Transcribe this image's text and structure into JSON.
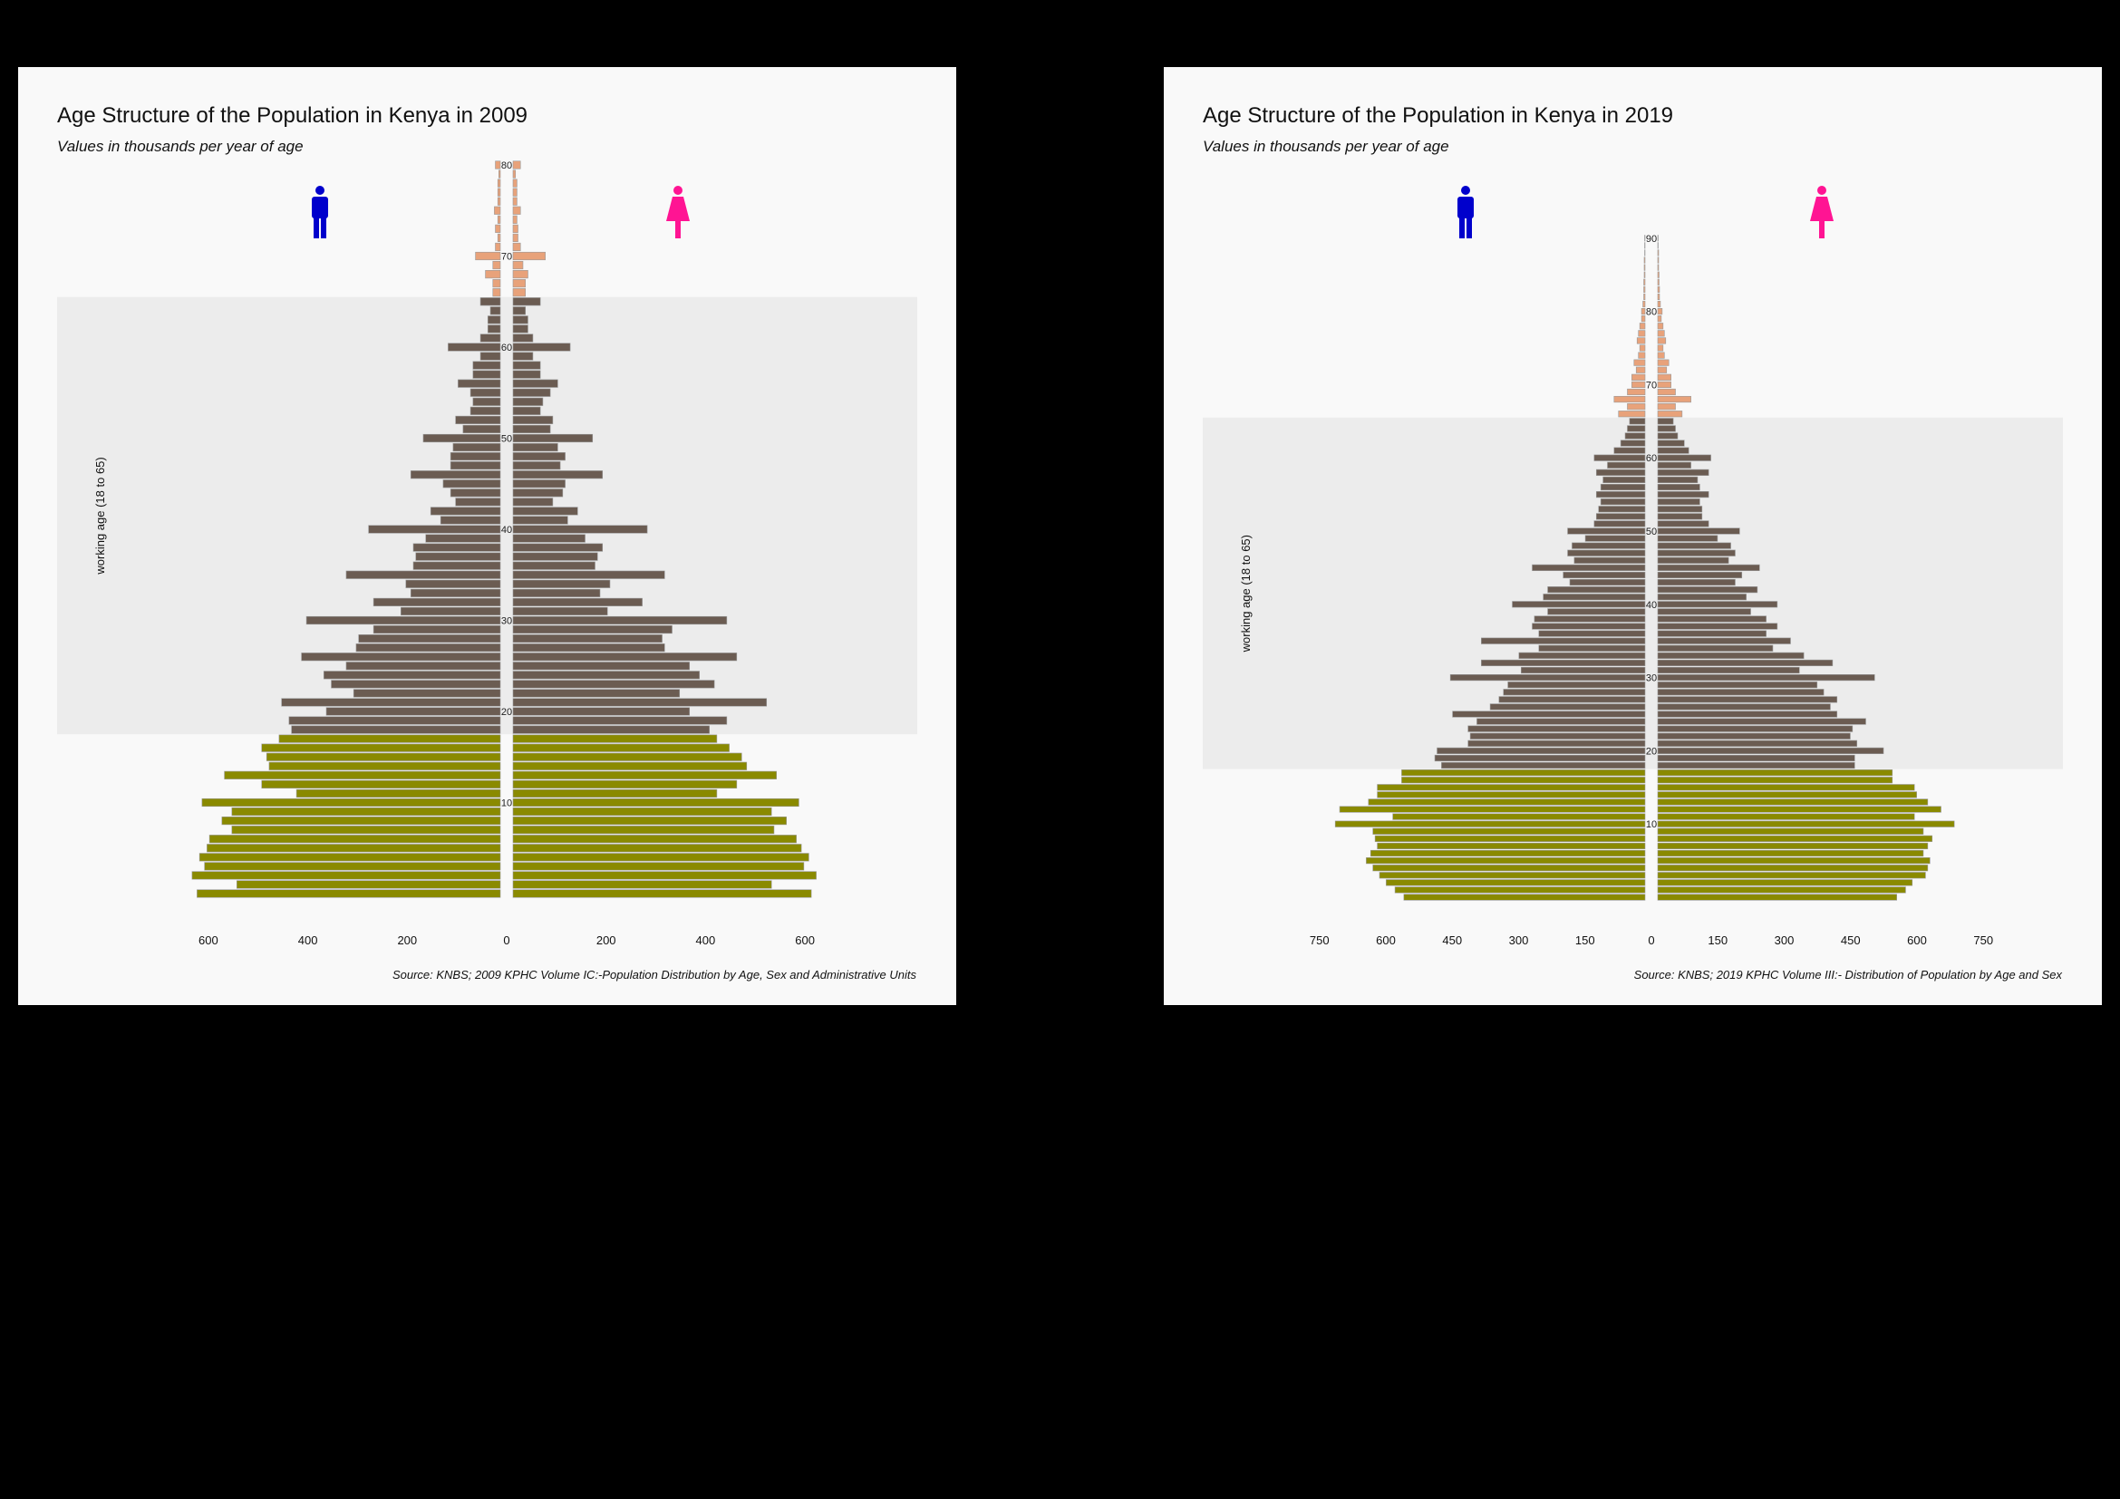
{
  "colors": {
    "background": "#000000",
    "panel": "#f9f9f9",
    "working_band": "#ececec",
    "young": "#8a8a00",
    "working": "#6b5c52",
    "old": "#e8a27a",
    "male_icon": "#0000cc",
    "female_icon": "#ff1493"
  },
  "icons": {
    "male": "male-figure-icon",
    "female": "female-figure-icon"
  },
  "chart_data": [
    {
      "type": "bar",
      "orientation": "population-pyramid",
      "title": "Age Structure of the Population in Kenya in 2009",
      "subtitle": "Values in thousands per year of age",
      "source": "Source: KNBS; 2009 KPHC Volume IC:-Population Distribution by Age, Sex and Administrative Units",
      "band_label": "working age (18 to 65)",
      "working_age_range": [
        18,
        65
      ],
      "age_range": [
        0,
        80
      ],
      "age_ticks": [
        10,
        20,
        30,
        40,
        50,
        60,
        70,
        80
      ],
      "x_ticks": [
        600,
        400,
        200,
        0,
        200,
        400,
        600
      ],
      "x_max": 700,
      "grid": false,
      "series": [
        {
          "name": "male",
          "values": [
            610,
            530,
            620,
            595,
            605,
            590,
            585,
            540,
            560,
            540,
            600,
            410,
            480,
            555,
            465,
            470,
            480,
            445,
            420,
            425,
            350,
            440,
            295,
            340,
            355,
            310,
            400,
            290,
            285,
            255,
            390,
            200,
            255,
            180,
            190,
            310,
            175,
            170,
            175,
            150,
            265,
            120,
            140,
            90,
            100,
            115,
            180,
            100,
            100,
            95,
            155,
            75,
            90,
            60,
            55,
            60,
            85,
            55,
            55,
            40,
            105,
            40,
            25,
            25,
            20,
            40,
            15,
            15,
            30,
            15,
            50,
            10,
            5,
            10,
            5,
            12,
            5,
            5,
            5,
            3,
            10
          ]
        },
        {
          "name": "female",
          "values": [
            600,
            520,
            610,
            585,
            595,
            580,
            570,
            525,
            550,
            520,
            575,
            410,
            450,
            530,
            470,
            460,
            435,
            410,
            395,
            430,
            355,
            510,
            335,
            405,
            375,
            355,
            450,
            305,
            300,
            320,
            430,
            190,
            260,
            175,
            195,
            305,
            165,
            170,
            180,
            145,
            270,
            110,
            130,
            80,
            100,
            105,
            180,
            95,
            105,
            90,
            160,
            75,
            80,
            55,
            60,
            75,
            90,
            55,
            55,
            40,
            115,
            40,
            30,
            30,
            25,
            55,
            25,
            25,
            30,
            20,
            65,
            15,
            10,
            10,
            8,
            15,
            8,
            8,
            8,
            5,
            15
          ]
        }
      ]
    },
    {
      "type": "bar",
      "orientation": "population-pyramid",
      "title": "Age Structure of the Population in Kenya in 2019",
      "subtitle": "Values in thousands per year of age",
      "source": "Source: KNBS; 2019 KPHC Volume III:- Distribution of Population by Age and Sex",
      "band_label": "working age (18 to 65)",
      "working_age_range": [
        18,
        65
      ],
      "age_range": [
        0,
        90
      ],
      "age_ticks": [
        10,
        20,
        30,
        40,
        50,
        60,
        70,
        80,
        90
      ],
      "x_ticks": [
        750,
        600,
        450,
        300,
        150,
        0,
        150,
        300,
        450,
        600,
        750
      ],
      "x_max": 830,
      "grid": false,
      "series": [
        {
          "name": "male",
          "values": [
            545,
            565,
            585,
            600,
            615,
            630,
            620,
            605,
            610,
            615,
            700,
            570,
            690,
            625,
            605,
            605,
            550,
            550,
            460,
            475,
            470,
            400,
            395,
            400,
            380,
            435,
            350,
            330,
            320,
            310,
            440,
            280,
            370,
            285,
            240,
            370,
            240,
            255,
            250,
            220,
            300,
            230,
            220,
            170,
            185,
            255,
            160,
            175,
            165,
            135,
            175,
            115,
            110,
            105,
            100,
            110,
            100,
            95,
            110,
            85,
            115,
            70,
            55,
            45,
            40,
            35,
            60,
            40,
            70,
            40,
            30,
            30,
            20,
            25,
            15,
            12,
            18,
            15,
            12,
            8,
            8,
            5,
            3,
            3,
            3,
            2,
            2,
            2,
            1,
            1,
            1
          ]
        },
        {
          "name": "female",
          "values": [
            540,
            560,
            575,
            605,
            610,
            615,
            600,
            610,
            620,
            600,
            670,
            580,
            640,
            610,
            585,
            580,
            530,
            530,
            445,
            445,
            510,
            450,
            435,
            440,
            470,
            405,
            390,
            405,
            375,
            360,
            490,
            320,
            395,
            330,
            260,
            300,
            245,
            270,
            245,
            210,
            270,
            200,
            225,
            175,
            190,
            230,
            160,
            175,
            165,
            135,
            185,
            115,
            100,
            100,
            95,
            115,
            95,
            90,
            115,
            75,
            120,
            70,
            60,
            45,
            40,
            35,
            55,
            40,
            75,
            40,
            30,
            30,
            20,
            25,
            15,
            12,
            18,
            15,
            12,
            8,
            10,
            6,
            4,
            4,
            3,
            3,
            2,
            2,
            2,
            1,
            1
          ]
        }
      ]
    }
  ]
}
